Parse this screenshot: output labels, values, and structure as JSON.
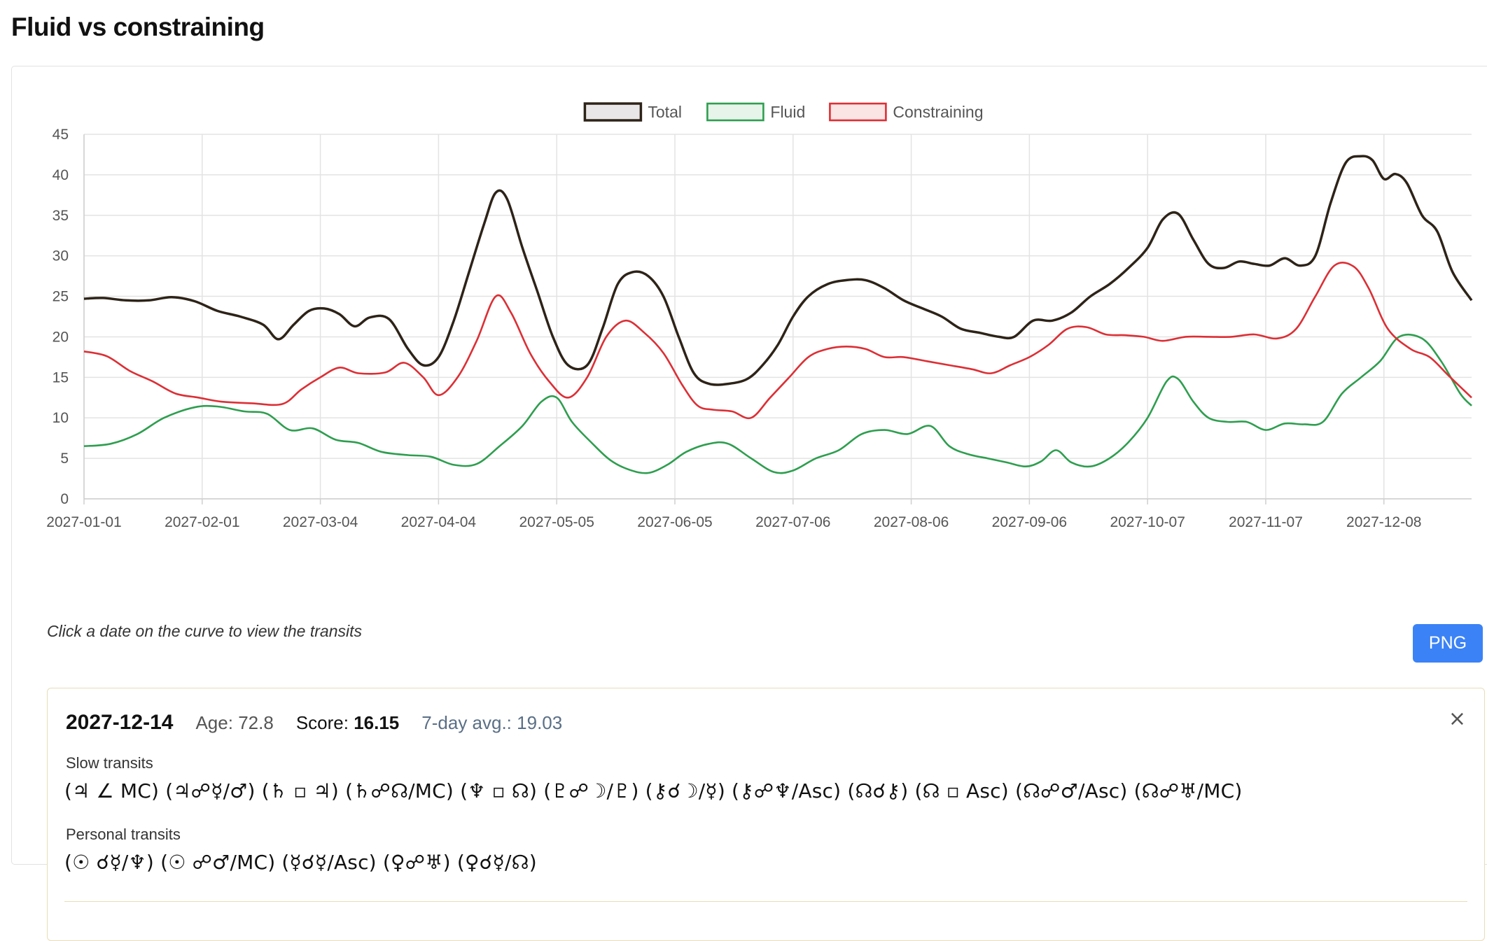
{
  "page": {
    "title": "Fluid vs constraining",
    "hint": "Click a date on the curve to view the transits",
    "png_button": "PNG"
  },
  "chart_data": {
    "type": "line",
    "x_type": "date",
    "x_range": [
      "2027-01-01",
      "2027-12-31"
    ],
    "x_ticks": [
      "2027-01-01",
      "2027-02-01",
      "2027-03-04",
      "2027-04-04",
      "2027-05-05",
      "2027-06-05",
      "2027-07-06",
      "2027-08-06",
      "2027-09-06",
      "2027-10-07",
      "2027-11-07",
      "2027-12-08"
    ],
    "ylim": [
      0,
      45
    ],
    "y_ticks": [
      0,
      5,
      10,
      15,
      20,
      25,
      30,
      35,
      40,
      45
    ],
    "grid": true,
    "legend_position": "top",
    "series": [
      {
        "name": "Total",
        "color": "#2d2318",
        "fill": "#e8e6e6",
        "points": [
          [
            "2027-01-01",
            24.7
          ],
          [
            "2027-01-06",
            24.8
          ],
          [
            "2027-01-12",
            24.5
          ],
          [
            "2027-01-18",
            24.5
          ],
          [
            "2027-01-24",
            24.9
          ],
          [
            "2027-01-30",
            24.4
          ],
          [
            "2027-02-05",
            23.2
          ],
          [
            "2027-02-11",
            22.5
          ],
          [
            "2027-02-17",
            21.5
          ],
          [
            "2027-02-21",
            19.7
          ],
          [
            "2027-02-25",
            21.5
          ],
          [
            "2027-03-01",
            23.2
          ],
          [
            "2027-03-05",
            23.5
          ],
          [
            "2027-03-09",
            22.8
          ],
          [
            "2027-03-13",
            21.3
          ],
          [
            "2027-03-17",
            22.4
          ],
          [
            "2027-03-22",
            22.2
          ],
          [
            "2027-03-27",
            18.5
          ],
          [
            "2027-03-31",
            16.5
          ],
          [
            "2027-04-04",
            17.5
          ],
          [
            "2027-04-08",
            22
          ],
          [
            "2027-04-12",
            28
          ],
          [
            "2027-04-16",
            34
          ],
          [
            "2027-04-19",
            37.8
          ],
          [
            "2027-04-22",
            37
          ],
          [
            "2027-04-26",
            31
          ],
          [
            "2027-04-30",
            25.5
          ],
          [
            "2027-05-04",
            20
          ],
          [
            "2027-05-08",
            16.5
          ],
          [
            "2027-05-13",
            16.5
          ],
          [
            "2027-05-17",
            21
          ],
          [
            "2027-05-21",
            26.5
          ],
          [
            "2027-05-25",
            28
          ],
          [
            "2027-05-29",
            27.5
          ],
          [
            "2027-06-02",
            25
          ],
          [
            "2027-06-06",
            20
          ],
          [
            "2027-06-10",
            15.5
          ],
          [
            "2027-06-14",
            14.2
          ],
          [
            "2027-06-19",
            14.2
          ],
          [
            "2027-06-24",
            14.8
          ],
          [
            "2027-06-28",
            16.5
          ],
          [
            "2027-07-02",
            19
          ],
          [
            "2027-07-06",
            22.5
          ],
          [
            "2027-07-10",
            25
          ],
          [
            "2027-07-15",
            26.5
          ],
          [
            "2027-07-20",
            27
          ],
          [
            "2027-07-25",
            27
          ],
          [
            "2027-07-30",
            26
          ],
          [
            "2027-08-04",
            24.5
          ],
          [
            "2027-08-09",
            23.5
          ],
          [
            "2027-08-14",
            22.5
          ],
          [
            "2027-08-19",
            21
          ],
          [
            "2027-08-24",
            20.5
          ],
          [
            "2027-08-29",
            20
          ],
          [
            "2027-09-02",
            20
          ],
          [
            "2027-09-07",
            22
          ],
          [
            "2027-09-12",
            22
          ],
          [
            "2027-09-17",
            23
          ],
          [
            "2027-09-22",
            25
          ],
          [
            "2027-09-27",
            26.5
          ],
          [
            "2027-10-02",
            28.5
          ],
          [
            "2027-10-07",
            31
          ],
          [
            "2027-10-11",
            34.5
          ],
          [
            "2027-10-15",
            35.2
          ],
          [
            "2027-10-19",
            32
          ],
          [
            "2027-10-23",
            29
          ],
          [
            "2027-10-27",
            28.5
          ],
          [
            "2027-10-31",
            29.3
          ],
          [
            "2027-11-04",
            29
          ],
          [
            "2027-11-08",
            28.8
          ],
          [
            "2027-11-12",
            29.7
          ],
          [
            "2027-11-16",
            28.8
          ],
          [
            "2027-11-20",
            30
          ],
          [
            "2027-11-24",
            36.5
          ],
          [
            "2027-11-28",
            41.5
          ],
          [
            "2027-12-02",
            42.3
          ],
          [
            "2027-12-05",
            41.8
          ],
          [
            "2027-12-08",
            39.5
          ],
          [
            "2027-12-11",
            40.1
          ],
          [
            "2027-12-14",
            39
          ],
          [
            "2027-12-18",
            35
          ],
          [
            "2027-12-22",
            33
          ],
          [
            "2027-12-26",
            28
          ],
          [
            "2027-12-31",
            24.5
          ]
        ]
      },
      {
        "name": "Fluid",
        "color": "#2e9e4f",
        "fill": "#e6f4ea",
        "points": [
          [
            "2027-01-01",
            6.5
          ],
          [
            "2027-01-08",
            6.8
          ],
          [
            "2027-01-15",
            8
          ],
          [
            "2027-01-22",
            10
          ],
          [
            "2027-01-30",
            11.3
          ],
          [
            "2027-02-05",
            11.4
          ],
          [
            "2027-02-12",
            10.8
          ],
          [
            "2027-02-18",
            10.5
          ],
          [
            "2027-02-24",
            8.5
          ],
          [
            "2027-03-02",
            8.7
          ],
          [
            "2027-03-08",
            7.3
          ],
          [
            "2027-03-14",
            6.9
          ],
          [
            "2027-03-20",
            5.8
          ],
          [
            "2027-03-27",
            5.4
          ],
          [
            "2027-04-02",
            5.2
          ],
          [
            "2027-04-08",
            4.2
          ],
          [
            "2027-04-14",
            4.3
          ],
          [
            "2027-04-20",
            6.5
          ],
          [
            "2027-04-26",
            9
          ],
          [
            "2027-05-01",
            12
          ],
          [
            "2027-05-05",
            12.5
          ],
          [
            "2027-05-09",
            9.5
          ],
          [
            "2027-05-14",
            7
          ],
          [
            "2027-05-19",
            4.8
          ],
          [
            "2027-05-24",
            3.6
          ],
          [
            "2027-05-29",
            3.2
          ],
          [
            "2027-06-03",
            4.2
          ],
          [
            "2027-06-08",
            5.8
          ],
          [
            "2027-06-14",
            6.8
          ],
          [
            "2027-06-19",
            6.8
          ],
          [
            "2027-06-25",
            5
          ],
          [
            "2027-07-01",
            3.3
          ],
          [
            "2027-07-06",
            3.5
          ],
          [
            "2027-07-12",
            5
          ],
          [
            "2027-07-18",
            6
          ],
          [
            "2027-07-24",
            8
          ],
          [
            "2027-07-30",
            8.5
          ],
          [
            "2027-08-05",
            8
          ],
          [
            "2027-08-11",
            9
          ],
          [
            "2027-08-16",
            6.5
          ],
          [
            "2027-08-21",
            5.5
          ],
          [
            "2027-08-26",
            5
          ],
          [
            "2027-08-31",
            4.5
          ],
          [
            "2027-09-05",
            4
          ],
          [
            "2027-09-09",
            4.6
          ],
          [
            "2027-09-13",
            6
          ],
          [
            "2027-09-17",
            4.5
          ],
          [
            "2027-09-22",
            4
          ],
          [
            "2027-09-27",
            5
          ],
          [
            "2027-10-02",
            7
          ],
          [
            "2027-10-07",
            10
          ],
          [
            "2027-10-12",
            14.5
          ],
          [
            "2027-10-15",
            14.8
          ],
          [
            "2027-10-19",
            12
          ],
          [
            "2027-10-23",
            10
          ],
          [
            "2027-10-28",
            9.5
          ],
          [
            "2027-11-02",
            9.5
          ],
          [
            "2027-11-07",
            8.5
          ],
          [
            "2027-11-12",
            9.3
          ],
          [
            "2027-11-17",
            9.2
          ],
          [
            "2027-11-22",
            9.5
          ],
          [
            "2027-11-27",
            13
          ],
          [
            "2027-12-02",
            15
          ],
          [
            "2027-12-07",
            17
          ],
          [
            "2027-12-12",
            20
          ],
          [
            "2027-12-18",
            19.8
          ],
          [
            "2027-12-23",
            17
          ],
          [
            "2027-12-28",
            13
          ],
          [
            "2027-12-31",
            11.5
          ]
        ]
      },
      {
        "name": "Constraining",
        "color": "#dc2f35",
        "fill": "#fbe4e4",
        "points": [
          [
            "2027-01-01",
            18.2
          ],
          [
            "2027-01-07",
            17.6
          ],
          [
            "2027-01-13",
            15.8
          ],
          [
            "2027-01-19",
            14.5
          ],
          [
            "2027-01-25",
            13
          ],
          [
            "2027-01-31",
            12.5
          ],
          [
            "2027-02-06",
            12
          ],
          [
            "2027-02-14",
            11.8
          ],
          [
            "2027-02-22",
            11.7
          ],
          [
            "2027-02-27",
            13.5
          ],
          [
            "2027-03-04",
            15
          ],
          [
            "2027-03-09",
            16.2
          ],
          [
            "2027-03-14",
            15.5
          ],
          [
            "2027-03-21",
            15.6
          ],
          [
            "2027-03-26",
            16.8
          ],
          [
            "2027-03-31",
            15
          ],
          [
            "2027-04-04",
            12.8
          ],
          [
            "2027-04-09",
            15
          ],
          [
            "2027-04-14",
            19.5
          ],
          [
            "2027-04-19",
            25
          ],
          [
            "2027-04-23",
            23
          ],
          [
            "2027-04-28",
            18
          ],
          [
            "2027-05-03",
            14.5
          ],
          [
            "2027-05-08",
            12.5
          ],
          [
            "2027-05-13",
            15
          ],
          [
            "2027-05-18",
            20
          ],
          [
            "2027-05-23",
            22
          ],
          [
            "2027-05-28",
            20.5
          ],
          [
            "2027-06-02",
            18
          ],
          [
            "2027-06-07",
            14
          ],
          [
            "2027-06-11",
            11.5
          ],
          [
            "2027-06-15",
            11
          ],
          [
            "2027-06-20",
            10.8
          ],
          [
            "2027-06-25",
            10
          ],
          [
            "2027-06-30",
            12.5
          ],
          [
            "2027-07-05",
            15
          ],
          [
            "2027-07-10",
            17.5
          ],
          [
            "2027-07-15",
            18.5
          ],
          [
            "2027-07-20",
            18.8
          ],
          [
            "2027-07-25",
            18.5
          ],
          [
            "2027-07-30",
            17.5
          ],
          [
            "2027-08-04",
            17.5
          ],
          [
            "2027-08-10",
            17
          ],
          [
            "2027-08-16",
            16.5
          ],
          [
            "2027-08-22",
            16
          ],
          [
            "2027-08-27",
            15.5
          ],
          [
            "2027-09-01",
            16.5
          ],
          [
            "2027-09-06",
            17.5
          ],
          [
            "2027-09-11",
            19
          ],
          [
            "2027-09-16",
            21
          ],
          [
            "2027-09-21",
            21.2
          ],
          [
            "2027-09-26",
            20.3
          ],
          [
            "2027-10-01",
            20.2
          ],
          [
            "2027-10-06",
            20
          ],
          [
            "2027-10-11",
            19.5
          ],
          [
            "2027-10-17",
            20
          ],
          [
            "2027-10-23",
            20
          ],
          [
            "2027-10-29",
            20
          ],
          [
            "2027-11-04",
            20.3
          ],
          [
            "2027-11-10",
            19.8
          ],
          [
            "2027-11-15",
            21
          ],
          [
            "2027-11-20",
            25
          ],
          [
            "2027-11-25",
            28.8
          ],
          [
            "2027-11-30",
            28.7
          ],
          [
            "2027-12-04",
            26
          ],
          [
            "2027-12-09",
            21
          ],
          [
            "2027-12-15",
            18.5
          ],
          [
            "2027-12-20",
            17.5
          ],
          [
            "2027-12-25",
            15.2
          ],
          [
            "2027-12-31",
            12.5
          ]
        ]
      }
    ]
  },
  "detail": {
    "date": "2027-12-14",
    "age_label": "Age:",
    "age": "72.8",
    "score_label": "Score:",
    "score": "16.15",
    "avg_label": "7-day avg.:",
    "avg": "19.03",
    "close_icon": "×",
    "slow_label": "Slow transits",
    "slow_transits": "(♃ ∠ MC)  (♃☍☿/♂)  (♄ ▫ ♃)  (♄☍☊/MC)  (♆ ▫ ☊)  (♇☍☽/♇)  (⚷☌☽/☿)  (⚷☍♆/Asc)  (☊☌⚷)  (☊ ▫ Asc)  (☊☍♂/Asc)  (☊☍♅/MC)",
    "personal_label": "Personal transits",
    "personal_transits": "(☉ ☌☿/♆)  (☉ ☍♂/MC)  (☿☌☿/Asc)  (♀☍♅)  (♀☌☿/☊)"
  }
}
